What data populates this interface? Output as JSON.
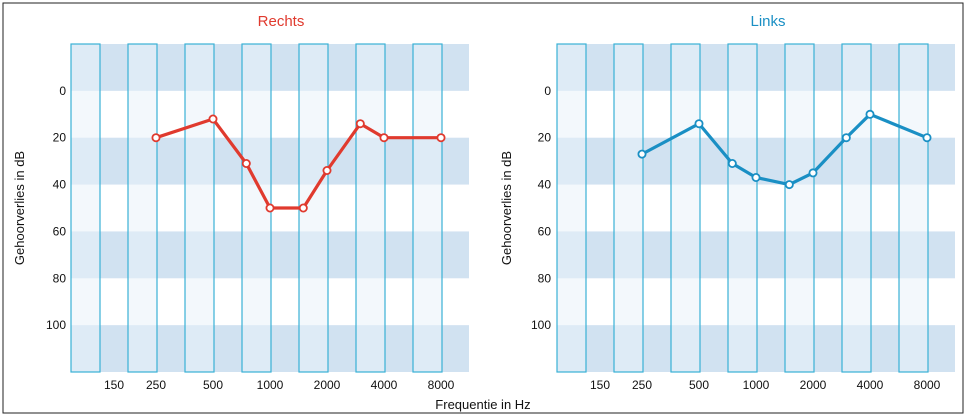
{
  "xlabel_common": "Frequentie in Hz",
  "chart_data": [
    {
      "type": "line",
      "title": "Rechts",
      "color": "#e03a2e",
      "ylabel": "Gehoorverlies in dB",
      "ylim": [
        -20,
        120
      ],
      "y_inverted": true,
      "yticks": [
        0,
        20,
        40,
        60,
        80,
        100
      ],
      "categories": [
        "150",
        "250",
        "500",
        "1000",
        "2000",
        "4000",
        "8000"
      ],
      "series": [
        {
          "x": [
            250,
            500,
            750,
            1000,
            1500,
            2000,
            3000,
            4000,
            8000
          ],
          "values": [
            20,
            12,
            31,
            50,
            50,
            34,
            14,
            20,
            20
          ]
        }
      ]
    },
    {
      "type": "line",
      "title": "Links",
      "color": "#1a8fc4",
      "ylabel": "Gehoorverlies in dB",
      "ylim": [
        -20,
        120
      ],
      "y_inverted": true,
      "yticks": [
        0,
        20,
        40,
        60,
        80,
        100
      ],
      "categories": [
        "150",
        "250",
        "500",
        "1000",
        "2000",
        "4000",
        "8000"
      ],
      "series": [
        {
          "x": [
            250,
            500,
            750,
            1000,
            1500,
            2000,
            3000,
            4000,
            8000
          ],
          "values": [
            27,
            14,
            31,
            37,
            40,
            35,
            20,
            10,
            20
          ]
        }
      ]
    }
  ]
}
